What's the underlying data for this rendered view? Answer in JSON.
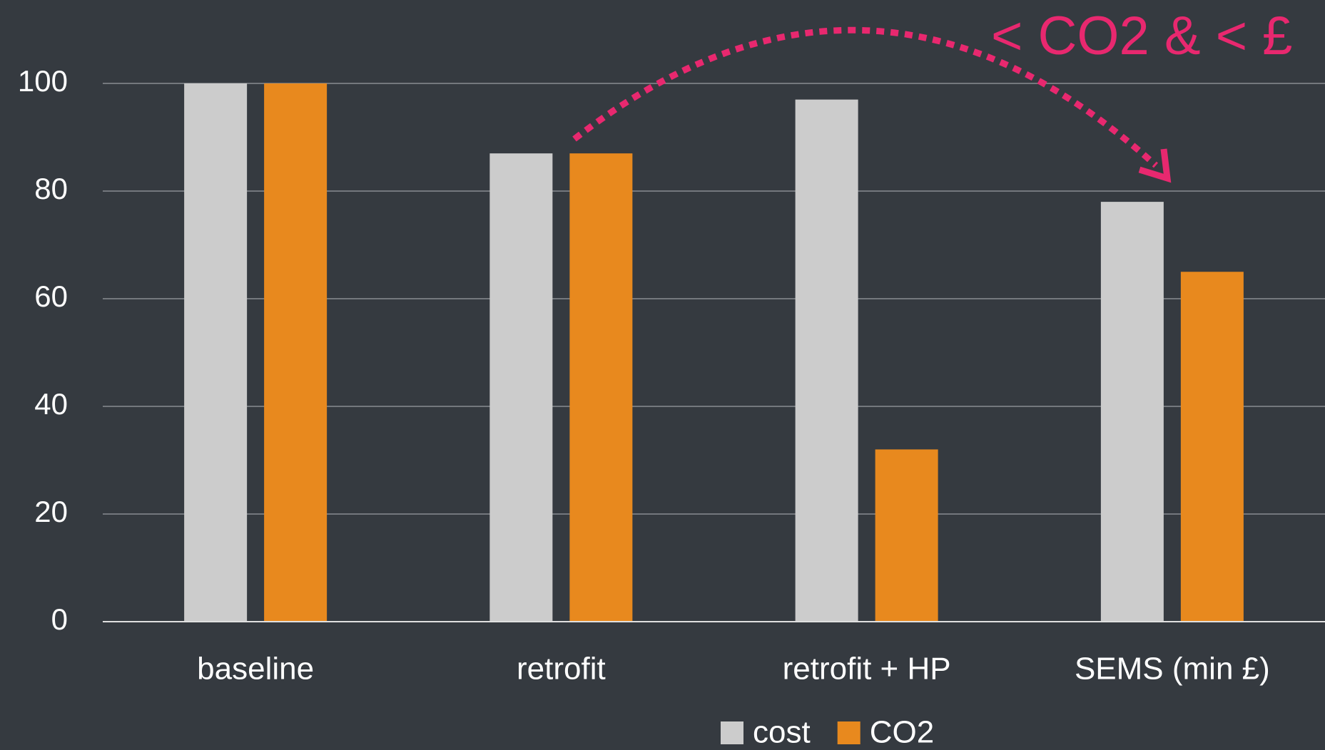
{
  "chart_data": {
    "type": "bar",
    "annotation": "< CO2 & < £",
    "categories": [
      "baseline",
      "retrofit",
      "retrofit + HP",
      "SEMS (min £)"
    ],
    "series": [
      {
        "name": "cost",
        "color": "#cccccc",
        "values": [
          100,
          87,
          97,
          78
        ]
      },
      {
        "name": "CO2",
        "color": "#e8891e",
        "values": [
          100,
          87,
          32,
          65
        ]
      }
    ],
    "ylim": [
      0,
      100
    ],
    "yticks": [
      0,
      20,
      40,
      60,
      80,
      100
    ],
    "grid": true
  }
}
